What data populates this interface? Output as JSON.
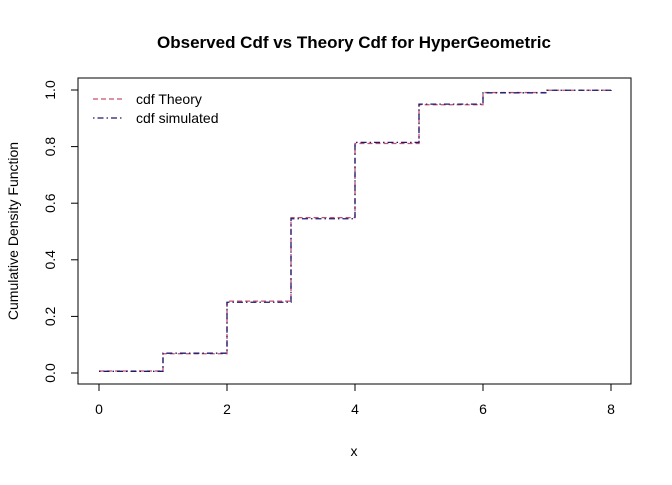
{
  "chart_data": {
    "type": "line",
    "title": "Observed Cdf vs Theory Cdf for HyperGeometric",
    "xlabel": "x",
    "ylabel": "Cumulative Density Function",
    "xlim": [
      0,
      8
    ],
    "ylim": [
      0,
      1
    ],
    "x_ticks": [
      0,
      2,
      4,
      6,
      8
    ],
    "y_ticks": [
      0.0,
      0.2,
      0.4,
      0.6,
      0.8,
      1.0
    ],
    "x_tick_labels": [
      "0",
      "2",
      "4",
      "6",
      "8"
    ],
    "y_tick_labels": [
      "0.0",
      "0.2",
      "0.4",
      "0.6",
      "0.8",
      "1.0"
    ],
    "grid": false,
    "legend_position": "top-left",
    "step": true,
    "x": [
      0,
      1,
      2,
      3,
      4,
      5,
      6,
      7,
      8
    ],
    "series": [
      {
        "name": "cdf Theory",
        "color": "#c8506e",
        "dash": "dashed",
        "values": [
          0.007,
          0.068,
          0.254,
          0.549,
          0.811,
          0.948,
          0.991,
          0.999,
          1.0
        ]
      },
      {
        "name": "cdf simulated",
        "color": "#1a1a6e",
        "dash": "dotdash",
        "values": [
          0.006,
          0.07,
          0.25,
          0.545,
          0.815,
          0.95,
          0.99,
          0.999,
          1.0
        ]
      }
    ]
  }
}
